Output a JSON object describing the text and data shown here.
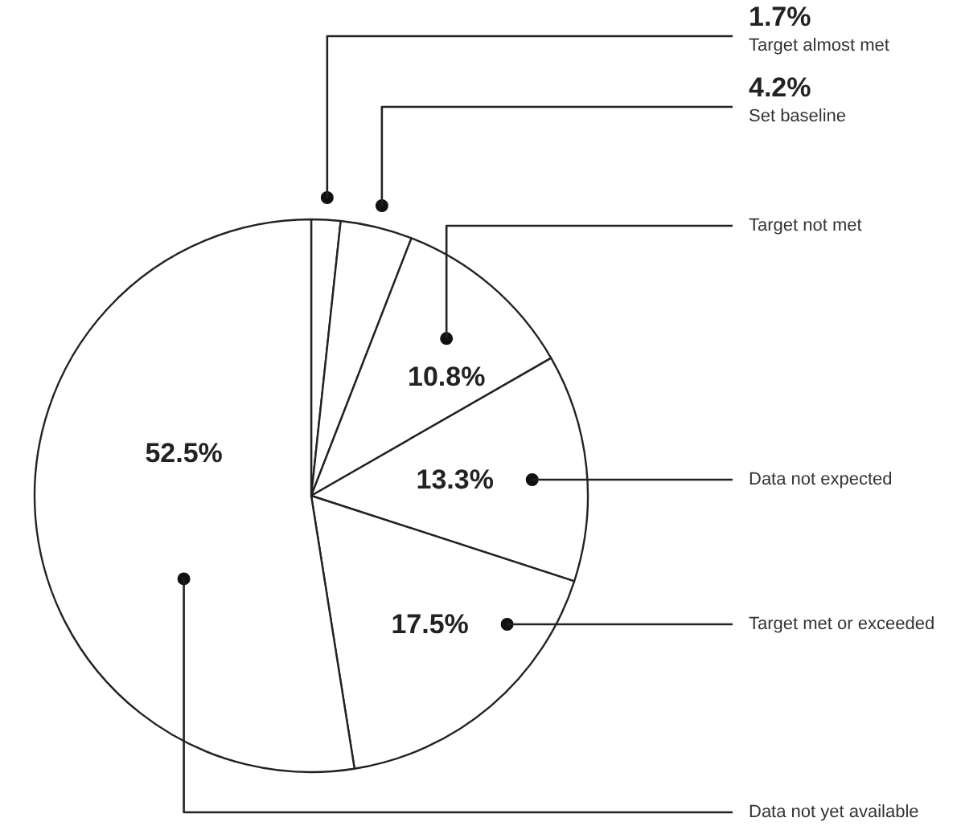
{
  "chart_data": {
    "type": "pie",
    "categories": [
      "Target almost met",
      "Set baseline",
      "Target not met",
      "Data not expected",
      "Target met or exceeded",
      "Data not yet available"
    ],
    "values": [
      1.7,
      4.2,
      10.8,
      13.3,
      17.5,
      52.5
    ],
    "colors": [
      "#ffffff",
      "#ffffff",
      "#ffffff",
      "#ffffff",
      "#ffffff",
      "#ffffff"
    ],
    "value_labels": [
      "1.7%",
      "4.2%",
      "10.8%",
      "13.3%",
      "17.5%",
      "52.5%"
    ]
  }
}
